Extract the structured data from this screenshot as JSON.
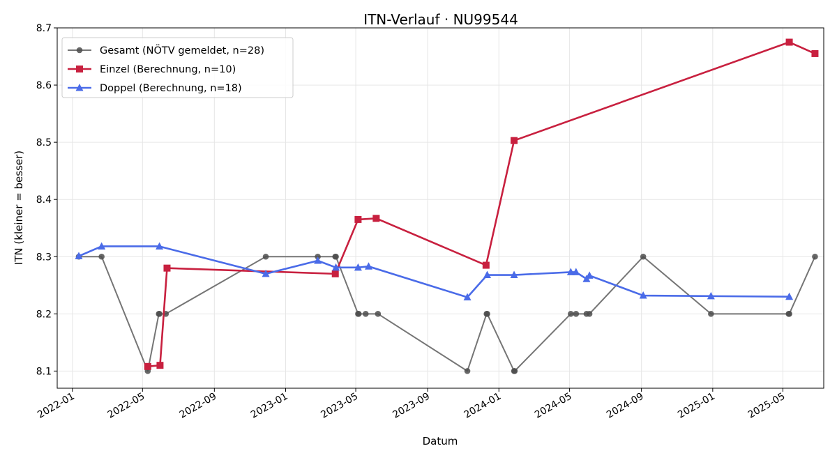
{
  "chart_data": {
    "type": "line",
    "title": "ITN-Verlauf · NU99544",
    "xlabel": "Datum",
    "ylabel": "ITN  (kleiner = besser)",
    "ylim": [
      8.07,
      8.7
    ],
    "xlim": [
      "2021-12-06",
      "2025-07-10"
    ],
    "yticks": [
      8.1,
      8.2,
      8.3,
      8.4,
      8.5,
      8.6,
      8.7
    ],
    "xticks": [
      "2022-01",
      "2022-05",
      "2022-09",
      "2023-01",
      "2023-05",
      "2023-09",
      "2024-01",
      "2024-05",
      "2024-09",
      "2025-01",
      "2025-05"
    ],
    "grid": true,
    "legend_position": "top-left",
    "series": [
      {
        "name": "Gesamt (NÖTV gemeldet, n=28)",
        "color": "#757575",
        "marker_color": "#4d4d4d",
        "marker": "circle",
        "points": [
          [
            "2022-01-12",
            8.3
          ],
          [
            "2022-02-20",
            8.3
          ],
          [
            "2022-05-10",
            8.1
          ],
          [
            "2022-05-29",
            8.2
          ],
          [
            "2022-05-30",
            8.2
          ],
          [
            "2022-06-10",
            8.2
          ],
          [
            "2022-11-28",
            8.3
          ],
          [
            "2023-02-25",
            8.3
          ],
          [
            "2023-03-27",
            8.3
          ],
          [
            "2023-03-28",
            8.3
          ],
          [
            "2023-05-05",
            8.2
          ],
          [
            "2023-05-06",
            8.2
          ],
          [
            "2023-05-18",
            8.2
          ],
          [
            "2023-06-08",
            8.2
          ],
          [
            "2023-11-08",
            8.1
          ],
          [
            "2023-12-11",
            8.2
          ],
          [
            "2023-12-12",
            8.2
          ],
          [
            "2024-01-27",
            8.1
          ],
          [
            "2024-01-28",
            8.1
          ],
          [
            "2024-05-03",
            8.2
          ],
          [
            "2024-05-12",
            8.2
          ],
          [
            "2024-05-30",
            8.2
          ],
          [
            "2024-06-04",
            8.2
          ],
          [
            "2024-09-04",
            8.3
          ],
          [
            "2024-12-29",
            8.2
          ],
          [
            "2025-05-11",
            8.2
          ],
          [
            "2025-05-12",
            8.2
          ],
          [
            "2025-06-25",
            8.3
          ]
        ]
      },
      {
        "name": "Einzel (Berechnung, n=10)",
        "color": "#c8203f",
        "marker_color": "#c8203f",
        "marker": "square",
        "points": [
          [
            "2022-05-10",
            8.108
          ],
          [
            "2022-05-31",
            8.11
          ],
          [
            "2022-06-12",
            8.28
          ],
          [
            "2023-03-27",
            8.27
          ],
          [
            "2023-05-05",
            8.365
          ],
          [
            "2023-06-05",
            8.367
          ],
          [
            "2023-12-10",
            8.285
          ],
          [
            "2024-01-27",
            8.503
          ],
          [
            "2025-05-12",
            8.675
          ],
          [
            "2025-06-25",
            8.655
          ]
        ]
      },
      {
        "name": "Doppel (Berechnung, n=18)",
        "color": "#4a6be8",
        "marker_color": "#4a6be8",
        "marker": "triangle",
        "points": [
          [
            "2022-01-12",
            8.301
          ],
          [
            "2022-02-20",
            8.318
          ],
          [
            "2022-05-30",
            8.318
          ],
          [
            "2022-11-28",
            8.27
          ],
          [
            "2023-02-25",
            8.293
          ],
          [
            "2023-03-28",
            8.281
          ],
          [
            "2023-05-05",
            8.281
          ],
          [
            "2023-05-23",
            8.283
          ],
          [
            "2023-11-08",
            8.229
          ],
          [
            "2023-12-12",
            8.268
          ],
          [
            "2024-01-27",
            8.268
          ],
          [
            "2024-05-03",
            8.273
          ],
          [
            "2024-05-12",
            8.273
          ],
          [
            "2024-05-30",
            8.261
          ],
          [
            "2024-06-04",
            8.267
          ],
          [
            "2024-09-04",
            8.232
          ],
          [
            "2024-12-29",
            8.231
          ],
          [
            "2025-05-12",
            8.23
          ]
        ]
      }
    ]
  }
}
